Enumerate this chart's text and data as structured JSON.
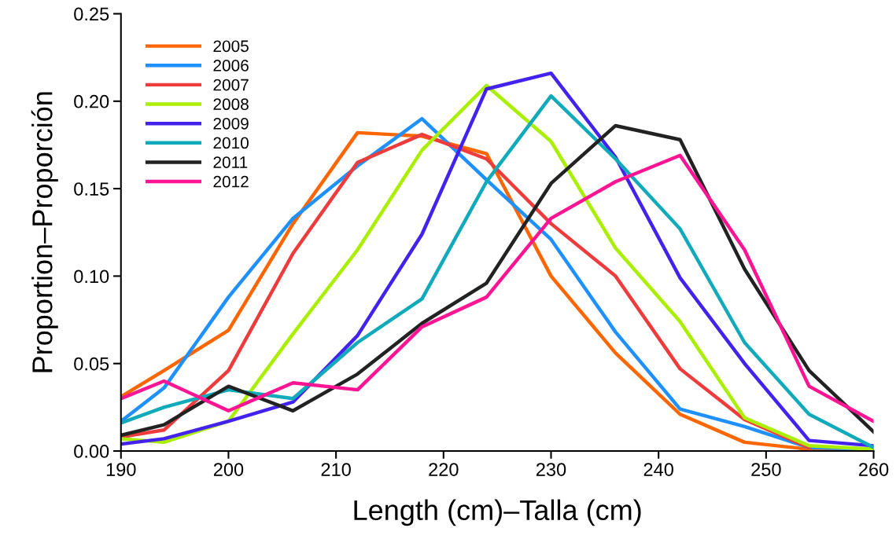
{
  "chart_data": {
    "type": "line",
    "xlabel": "Length (cm)–Talla (cm)",
    "ylabel": "Proportion–Proporción",
    "x": [
      190,
      194,
      200,
      206,
      212,
      218,
      224,
      230,
      236,
      242,
      248,
      254,
      260
    ],
    "series": [
      {
        "name": "2005",
        "color": "#ff6600",
        "values": [
          0.031,
          0.046,
          0.069,
          0.13,
          0.182,
          0.18,
          0.17,
          0.1,
          0.056,
          0.021,
          0.005,
          0.001,
          0.0
        ]
      },
      {
        "name": "2006",
        "color": "#1e90ff",
        "values": [
          0.017,
          0.036,
          0.088,
          0.133,
          0.163,
          0.19,
          0.155,
          0.121,
          0.068,
          0.024,
          0.014,
          0.002,
          0.001
        ]
      },
      {
        "name": "2007",
        "color": "#ee3b3b",
        "values": [
          0.008,
          0.012,
          0.046,
          0.113,
          0.165,
          0.181,
          0.167,
          0.13,
          0.1,
          0.047,
          0.018,
          0.002,
          null
        ]
      },
      {
        "name": "2008",
        "color": "#aaee00",
        "values": [
          0.007,
          0.005,
          0.017,
          0.067,
          0.115,
          0.172,
          0.209,
          0.177,
          0.116,
          0.074,
          0.019,
          0.003,
          0.001
        ]
      },
      {
        "name": "2009",
        "color": "#4422ee",
        "values": [
          0.004,
          0.007,
          0.017,
          0.028,
          0.066,
          0.124,
          0.207,
          0.216,
          0.168,
          0.099,
          0.05,
          0.006,
          0.003
        ]
      },
      {
        "name": "2010",
        "color": "#11aabb",
        "values": [
          0.016,
          0.025,
          0.035,
          0.03,
          0.062,
          0.087,
          0.154,
          0.203,
          0.167,
          0.127,
          0.062,
          0.021,
          0.002
        ]
      },
      {
        "name": "2011",
        "color": "#222222",
        "values": [
          0.009,
          0.015,
          0.037,
          0.023,
          0.044,
          0.073,
          0.096,
          0.153,
          0.186,
          0.178,
          0.104,
          0.046,
          0.011
        ]
      },
      {
        "name": "2012",
        "color": "#ff1493",
        "values": [
          0.03,
          0.04,
          0.023,
          0.039,
          0.035,
          0.071,
          0.088,
          0.133,
          0.154,
          0.169,
          0.115,
          0.037,
          0.017
        ]
      }
    ],
    "xlim": [
      190,
      260
    ],
    "xticks": [
      190,
      200,
      210,
      220,
      230,
      240,
      250,
      260
    ],
    "ylim": [
      0,
      0.25
    ],
    "yticks": [
      {
        "value": 0,
        "label": "0.00"
      },
      {
        "value": 0.05,
        "label": "0.05"
      },
      {
        "value": 0.1,
        "label": "0.10"
      },
      {
        "value": 0.15,
        "label": "0.15"
      },
      {
        "value": 0.2,
        "label": "0.20"
      },
      {
        "value": 0.25,
        "label": "0.25"
      }
    ],
    "legend": "top left",
    "grid": false,
    "line_style": "solid"
  }
}
